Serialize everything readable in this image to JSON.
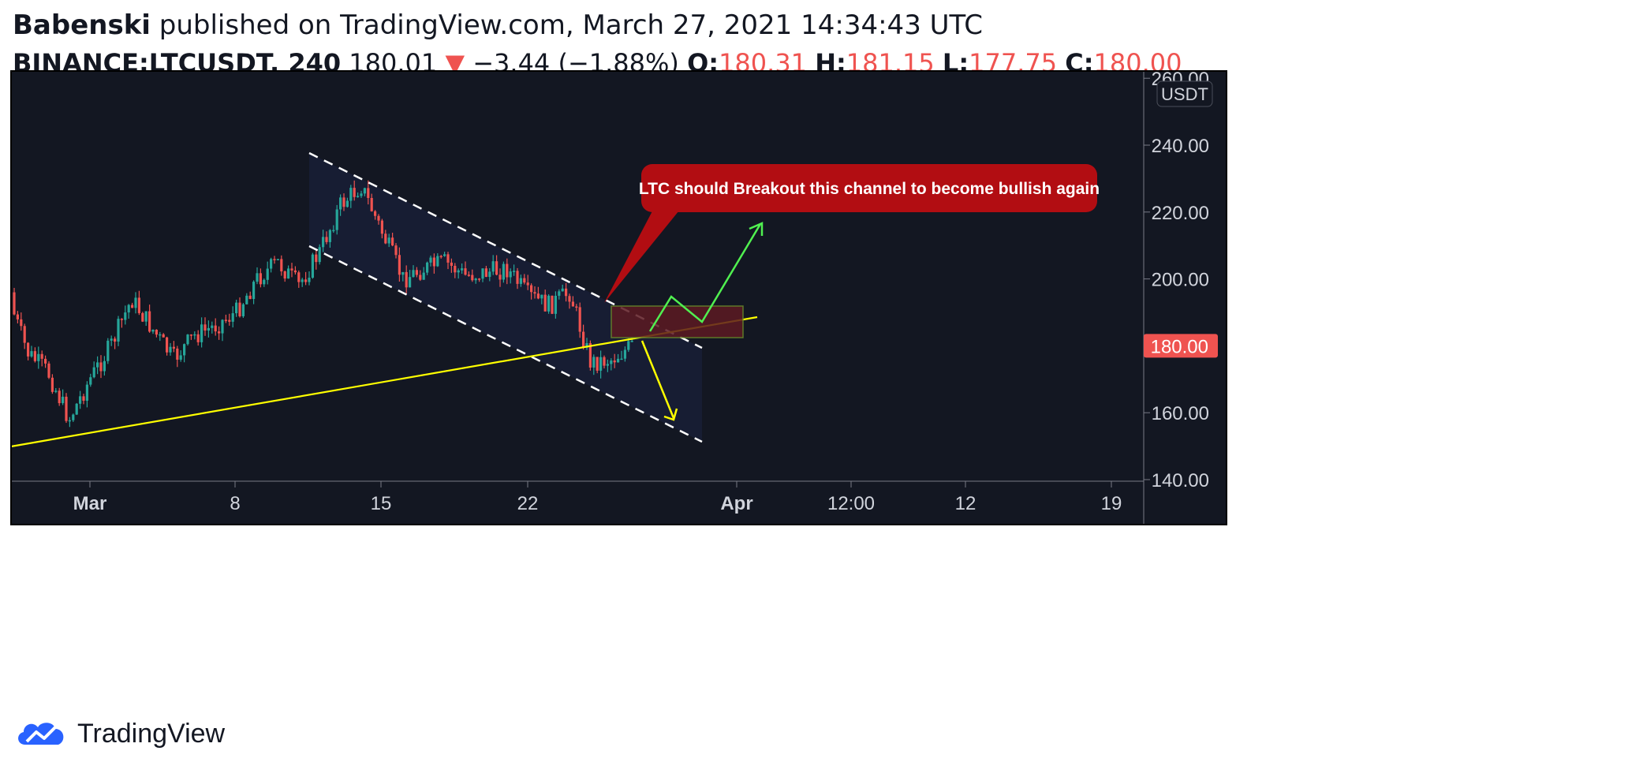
{
  "header": {
    "author": "Babenski",
    "published_text": " published on TradingView.com, March 27, 2021 14:34:43 UTC",
    "symbol": "BINANCE:LTCUSDT, 240",
    "last": "180.01",
    "change_arrow": "▼",
    "change": "−3.44 (−1.88%)",
    "o_label": "O:",
    "o_val": "180.31",
    "h_label": "H:",
    "h_val": "181.15",
    "l_label": "L:",
    "l_val": "177.75",
    "c_label": "C:",
    "c_val": "180.00"
  },
  "footer": {
    "brand": "TradingView",
    "logo_icon": "tradingview-cloud-icon"
  },
  "chart_data": {
    "type": "candlestick",
    "symbol": "BINANCE:LTCUSDT",
    "interval": "240",
    "currency": "USDT",
    "ylim": [
      140,
      260
    ],
    "y_ticks": [
      "260.00",
      "240.00",
      "220.00",
      "200.00",
      "180.00",
      "160.00",
      "140.00"
    ],
    "x_ticks": [
      "Mar",
      "8",
      "15",
      "22",
      "Apr",
      "12:00",
      "12",
      "19"
    ],
    "current_price_label": "180.00",
    "price_path": [
      [
        "2021-02-25",
        196
      ],
      [
        "2021-02-26",
        178
      ],
      [
        "2021-02-27",
        172
      ],
      [
        "2021-02-28",
        158
      ],
      [
        "2021-03-01",
        170
      ],
      [
        "2021-03-02",
        180
      ],
      [
        "2021-03-03",
        194
      ],
      [
        "2021-03-04",
        185
      ],
      [
        "2021-03-05",
        176
      ],
      [
        "2021-03-06",
        183
      ],
      [
        "2021-03-07",
        186
      ],
      [
        "2021-03-08",
        190
      ],
      [
        "2021-03-09",
        200
      ],
      [
        "2021-03-10",
        205
      ],
      [
        "2021-03-11",
        198
      ],
      [
        "2021-03-12",
        208
      ],
      [
        "2021-03-13",
        222
      ],
      [
        "2021-03-14",
        228
      ],
      [
        "2021-03-15",
        214
      ],
      [
        "2021-03-16",
        200
      ],
      [
        "2021-03-17",
        203
      ],
      [
        "2021-03-18",
        205
      ],
      [
        "2021-03-19",
        201
      ],
      [
        "2021-03-20",
        202
      ],
      [
        "2021-03-21",
        203
      ],
      [
        "2021-03-22",
        195
      ],
      [
        "2021-03-23",
        192
      ],
      [
        "2021-03-24",
        196
      ],
      [
        "2021-03-25",
        175
      ],
      [
        "2021-03-26",
        176
      ],
      [
        "2021-03-27",
        180
      ]
    ],
    "annotations": {
      "callout_text": "LTC should Breakout this channel to become bullish again",
      "trendline_color": "#ffff00",
      "channel_color": "#ffffff",
      "bullish_path_color": "#50f050",
      "bearish_path_color": "#ffff00",
      "zone_color": "#5c1a22",
      "callout_color": "#b20d12"
    },
    "colors": {
      "background": "#131722",
      "up": "#26a69a",
      "down": "#ef5350",
      "axis_text": "#d1d4dc"
    }
  }
}
